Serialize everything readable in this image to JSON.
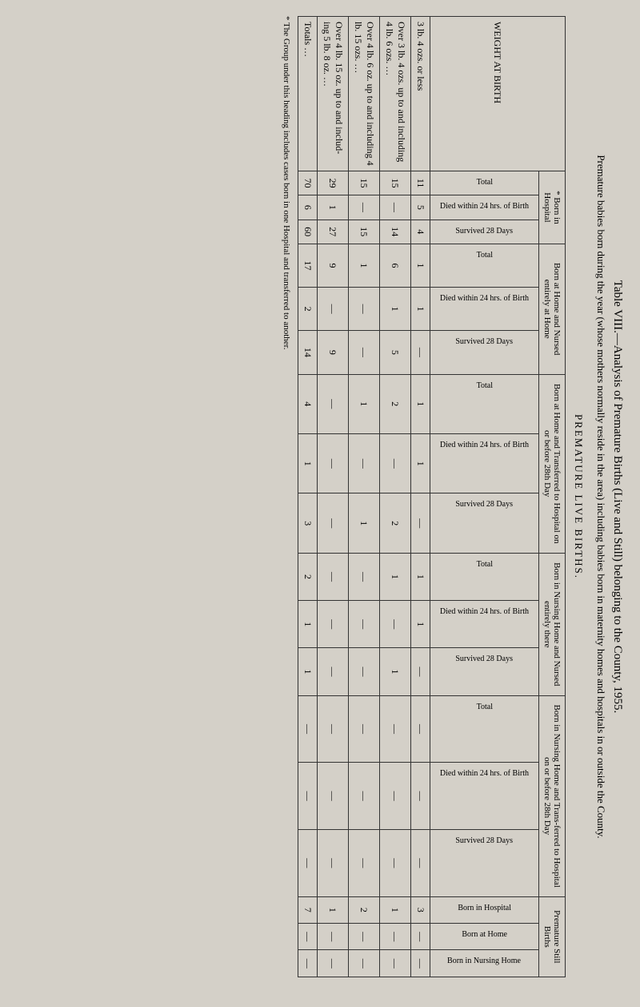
{
  "title": "Table VIII.—Analysis of Premature Births (Live and Still) belonging to the County, 1955.",
  "subtitle": "Premature babies born during the year (whose mothers normally reside in the area) including babies born in maternity homes and hospitals in or outside the County.",
  "section_head": "PREMATURE LIVE BIRTHS.",
  "weight_header": "WEIGHT AT BIRTH",
  "group_headers": {
    "hospital": "* Born in Hospital",
    "home_nursed_home": "Born at Home and Nursed entirely at Home",
    "home_transferred": "Born at Home and Transferred to Hospital on or before 28th Day",
    "nursing_home_nursed": "Born in Nursing Home and Nursed entirely there",
    "nursing_home_transferred": "Born in Nursing Home and Trans-ferred to Hospital on or before 28th Day",
    "premature_still": "Premature Still Births"
  },
  "sub_headers": {
    "total": "Total",
    "died24": "Died within 24 hrs. of Birth",
    "survived28": "Survived 28 Days",
    "born_hospital": "Born in Hospital",
    "born_home": "Born at Home",
    "born_nursing": "Born in Nursing Home"
  },
  "rows": [
    {
      "label": "3 lb. 4 ozs. or less",
      "cells": [
        "11",
        "5",
        "4",
        "1",
        "1",
        "—",
        "1",
        "1",
        "—",
        "1",
        "1",
        "—",
        "—",
        "—",
        "—",
        "3",
        "—",
        "—"
      ]
    },
    {
      "label": "Over 3 lb. 4 ozs. up to and including 4 lb. 6 ozs.    …",
      "cells": [
        "15",
        "—",
        "14",
        "6",
        "1",
        "5",
        "2",
        "—",
        "2",
        "1",
        "—",
        "1",
        "—",
        "—",
        "—",
        "1",
        "—",
        "—"
      ]
    },
    {
      "label": "Over 4 lb. 6 oz. up to and including 4 lb. 15 ozs.    …",
      "cells": [
        "15",
        "—",
        "15",
        "1",
        "—",
        "—",
        "1",
        "—",
        "1",
        "—",
        "—",
        "—",
        "—",
        "—",
        "—",
        "2",
        "—",
        "—"
      ]
    },
    {
      "label": "Over 4 lb. 15 oz. up to and includ-ing 5 lb. 8 oz.    …",
      "cells": [
        "29",
        "1",
        "27",
        "9",
        "—",
        "9",
        "—",
        "—",
        "—",
        "—",
        "—",
        "—",
        "—",
        "—",
        "—",
        "1",
        "—",
        "—"
      ]
    },
    {
      "label": "Totals    …",
      "cells": [
        "70",
        "6",
        "60",
        "17",
        "2",
        "14",
        "4",
        "1",
        "3",
        "2",
        "1",
        "1",
        "—",
        "—",
        "—",
        "7",
        "—",
        "—"
      ]
    }
  ],
  "footnote": "* The Group under this heading includes cases born in one Hospital and transferred to another.",
  "colors": {
    "page_bg": "#d4d0c8",
    "border": "#333333",
    "text": "#222222"
  }
}
